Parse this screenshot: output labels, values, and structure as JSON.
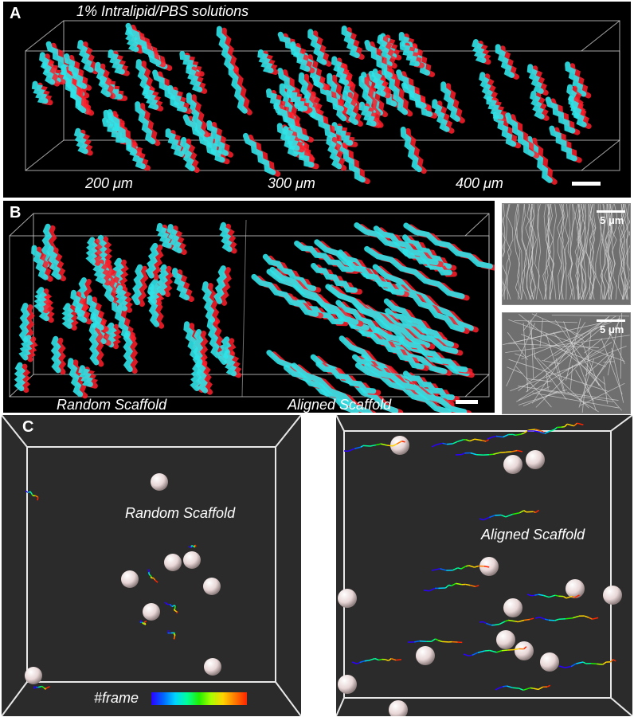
{
  "panel_a": {
    "label": "A",
    "title": "1% Intralipid/PBS solutions",
    "depths": [
      "200 μm",
      "300 μm",
      "400 μm"
    ]
  },
  "panel_b": {
    "label": "B",
    "left_caption": "Random Scaffold",
    "right_caption": "Aligned Scaffold",
    "sem_top_scale": "5 μm",
    "sem_bottom_scale": "5 μm"
  },
  "panel_c": {
    "label": "C",
    "left_title": "Random Scaffold",
    "right_title": "Aligned Scaffold",
    "colorbar_label": "#frame"
  },
  "colors": {
    "cyan": "#2fe3e8",
    "red": "#ff1e2a",
    "sphere": "#e8d6d6",
    "panel_c_bg": "#2b2b2b"
  }
}
